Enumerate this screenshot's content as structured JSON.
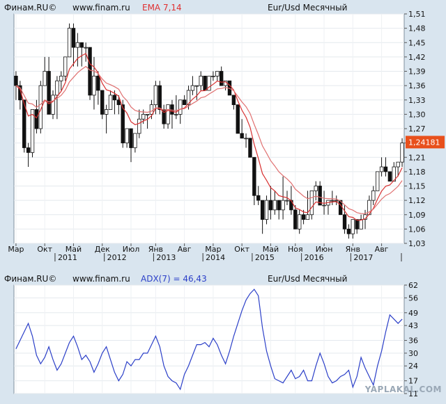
{
  "price_panel": {
    "source": "Финам.RU©",
    "site": "www.finam.ru",
    "indicator": "EMA 7,14",
    "indicator_color": "#e03030",
    "instrument": "Eur/Usd Месячный",
    "last_price": "1,24181",
    "last_price_color": "#e8501c",
    "y_ticks": [
      "1,51",
      "1,48",
      "1,45",
      "1,42",
      "1,39",
      "1,36",
      "1,33",
      "1,30",
      "1,27",
      "1,24",
      "1,21",
      "1,18",
      "1,15",
      "1,12",
      "1,09",
      "1,06",
      "1,03"
    ],
    "month_labels": [
      "Мар",
      "Окт",
      "Май",
      "Дек",
      "Июл",
      "Янв",
      "Авг",
      "Мар",
      "Окт",
      "Май",
      "Ноя",
      "Июн",
      "Янв",
      "Авг"
    ],
    "year_labels": [
      "2011",
      "2012",
      "2013",
      "2014",
      "2015",
      "2016",
      "2017"
    ]
  },
  "adx_panel": {
    "source": "Финам.RU©",
    "site": "www.finam.ru",
    "indicator": "ADX(7) = 46,43",
    "indicator_color": "#2b3fc8",
    "instrument": "Eur/Usd Месячный",
    "y_ticks": [
      "62",
      "56",
      "49",
      "43",
      "36",
      "30",
      "24",
      "17",
      "11"
    ]
  },
  "watermark": "YAPLAKAL.COM",
  "chart_data": [
    {
      "type": "candlestick",
      "title": "Eur/Usd Месячный",
      "ylim": [
        1.03,
        1.51
      ],
      "x_range": [
        "2010-03",
        "2017-12"
      ],
      "grid": true,
      "ohlc": [
        {
          "x": "2010-03",
          "o": 1.38,
          "h": 1.39,
          "l": 1.33,
          "c": 1.36
        },
        {
          "x": "2010-04",
          "o": 1.36,
          "h": 1.37,
          "l": 1.31,
          "c": 1.33
        },
        {
          "x": "2010-05",
          "o": 1.33,
          "h": 1.33,
          "l": 1.22,
          "c": 1.23
        },
        {
          "x": "2010-06",
          "o": 1.23,
          "h": 1.24,
          "l": 1.19,
          "c": 1.22
        },
        {
          "x": "2010-07",
          "o": 1.22,
          "h": 1.31,
          "l": 1.21,
          "c": 1.31
        },
        {
          "x": "2010-08",
          "o": 1.31,
          "h": 1.33,
          "l": 1.26,
          "c": 1.27
        },
        {
          "x": "2010-09",
          "o": 1.27,
          "h": 1.37,
          "l": 1.26,
          "c": 1.36
        },
        {
          "x": "2010-10",
          "o": 1.36,
          "h": 1.42,
          "l": 1.36,
          "c": 1.39
        },
        {
          "x": "2010-11",
          "o": 1.39,
          "h": 1.42,
          "l": 1.3,
          "c": 1.3
        },
        {
          "x": "2010-12",
          "o": 1.3,
          "h": 1.35,
          "l": 1.29,
          "c": 1.34
        },
        {
          "x": "2011-01",
          "o": 1.34,
          "h": 1.38,
          "l": 1.29,
          "c": 1.37
        },
        {
          "x": "2011-02",
          "o": 1.37,
          "h": 1.39,
          "l": 1.35,
          "c": 1.38
        },
        {
          "x": "2011-03",
          "o": 1.38,
          "h": 1.42,
          "l": 1.37,
          "c": 1.42
        },
        {
          "x": "2011-04",
          "o": 1.42,
          "h": 1.49,
          "l": 1.42,
          "c": 1.48
        },
        {
          "x": "2011-05",
          "o": 1.48,
          "h": 1.49,
          "l": 1.4,
          "c": 1.44
        },
        {
          "x": "2011-06",
          "o": 1.44,
          "h": 1.47,
          "l": 1.4,
          "c": 1.45
        },
        {
          "x": "2011-07",
          "o": 1.45,
          "h": 1.45,
          "l": 1.4,
          "c": 1.44
        },
        {
          "x": "2011-08",
          "o": 1.44,
          "h": 1.45,
          "l": 1.41,
          "c": 1.44
        },
        {
          "x": "2011-09",
          "o": 1.44,
          "h": 1.44,
          "l": 1.33,
          "c": 1.34
        },
        {
          "x": "2011-10",
          "o": 1.34,
          "h": 1.42,
          "l": 1.31,
          "c": 1.38
        },
        {
          "x": "2011-11",
          "o": 1.38,
          "h": 1.39,
          "l": 1.32,
          "c": 1.35
        },
        {
          "x": "2011-12",
          "o": 1.35,
          "h": 1.35,
          "l": 1.29,
          "c": 1.3
        },
        {
          "x": "2012-01",
          "o": 1.3,
          "h": 1.32,
          "l": 1.26,
          "c": 1.31
        },
        {
          "x": "2012-02",
          "o": 1.31,
          "h": 1.35,
          "l": 1.31,
          "c": 1.34
        },
        {
          "x": "2012-03",
          "o": 1.34,
          "h": 1.35,
          "l": 1.3,
          "c": 1.33
        },
        {
          "x": "2012-04",
          "o": 1.33,
          "h": 1.34,
          "l": 1.3,
          "c": 1.32
        },
        {
          "x": "2012-05",
          "o": 1.32,
          "h": 1.33,
          "l": 1.23,
          "c": 1.24
        },
        {
          "x": "2012-06",
          "o": 1.24,
          "h": 1.27,
          "l": 1.23,
          "c": 1.27
        },
        {
          "x": "2012-07",
          "o": 1.27,
          "h": 1.27,
          "l": 1.2,
          "c": 1.23
        },
        {
          "x": "2012-08",
          "o": 1.23,
          "h": 1.26,
          "l": 1.22,
          "c": 1.26
        },
        {
          "x": "2012-09",
          "o": 1.26,
          "h": 1.31,
          "l": 1.25,
          "c": 1.29
        },
        {
          "x": "2012-10",
          "o": 1.29,
          "h": 1.31,
          "l": 1.28,
          "c": 1.3
        },
        {
          "x": "2012-11",
          "o": 1.3,
          "h": 1.3,
          "l": 1.27,
          "c": 1.3
        },
        {
          "x": "2012-12",
          "o": 1.3,
          "h": 1.33,
          "l": 1.29,
          "c": 1.32
        },
        {
          "x": "2013-01",
          "o": 1.32,
          "h": 1.37,
          "l": 1.3,
          "c": 1.36
        },
        {
          "x": "2013-02",
          "o": 1.36,
          "h": 1.37,
          "l": 1.3,
          "c": 1.31
        },
        {
          "x": "2013-03",
          "o": 1.31,
          "h": 1.32,
          "l": 1.27,
          "c": 1.28
        },
        {
          "x": "2013-04",
          "o": 1.28,
          "h": 1.32,
          "l": 1.27,
          "c": 1.32
        },
        {
          "x": "2013-05",
          "o": 1.32,
          "h": 1.33,
          "l": 1.27,
          "c": 1.3
        },
        {
          "x": "2013-06",
          "o": 1.3,
          "h": 1.34,
          "l": 1.29,
          "c": 1.3
        },
        {
          "x": "2013-07",
          "o": 1.3,
          "h": 1.33,
          "l": 1.28,
          "c": 1.33
        },
        {
          "x": "2013-08",
          "o": 1.33,
          "h": 1.34,
          "l": 1.32,
          "c": 1.32
        },
        {
          "x": "2013-09",
          "o": 1.32,
          "h": 1.36,
          "l": 1.31,
          "c": 1.35
        },
        {
          "x": "2013-10",
          "o": 1.35,
          "h": 1.38,
          "l": 1.34,
          "c": 1.36
        },
        {
          "x": "2013-11",
          "o": 1.36,
          "h": 1.36,
          "l": 1.33,
          "c": 1.36
        },
        {
          "x": "2013-12",
          "o": 1.36,
          "h": 1.39,
          "l": 1.35,
          "c": 1.38
        },
        {
          "x": "2014-01",
          "o": 1.38,
          "h": 1.38,
          "l": 1.35,
          "c": 1.35
        },
        {
          "x": "2014-02",
          "o": 1.35,
          "h": 1.38,
          "l": 1.35,
          "c": 1.38
        },
        {
          "x": "2014-03",
          "o": 1.38,
          "h": 1.39,
          "l": 1.37,
          "c": 1.38
        },
        {
          "x": "2014-04",
          "o": 1.38,
          "h": 1.39,
          "l": 1.37,
          "c": 1.39
        },
        {
          "x": "2014-05",
          "o": 1.39,
          "h": 1.4,
          "l": 1.36,
          "c": 1.36
        },
        {
          "x": "2014-06",
          "o": 1.36,
          "h": 1.37,
          "l": 1.35,
          "c": 1.37
        },
        {
          "x": "2014-07",
          "o": 1.37,
          "h": 1.37,
          "l": 1.34,
          "c": 1.34
        },
        {
          "x": "2014-08",
          "o": 1.34,
          "h": 1.34,
          "l": 1.31,
          "c": 1.32
        },
        {
          "x": "2014-09",
          "o": 1.32,
          "h": 1.32,
          "l": 1.26,
          "c": 1.26
        },
        {
          "x": "2014-10",
          "o": 1.26,
          "h": 1.29,
          "l": 1.25,
          "c": 1.25
        },
        {
          "x": "2014-11",
          "o": 1.25,
          "h": 1.26,
          "l": 1.23,
          "c": 1.25
        },
        {
          "x": "2014-12",
          "o": 1.25,
          "h": 1.25,
          "l": 1.21,
          "c": 1.21
        },
        {
          "x": "2015-01",
          "o": 1.21,
          "h": 1.21,
          "l": 1.11,
          "c": 1.13
        },
        {
          "x": "2015-02",
          "o": 1.13,
          "h": 1.15,
          "l": 1.11,
          "c": 1.12
        },
        {
          "x": "2015-03",
          "o": 1.12,
          "h": 1.12,
          "l": 1.05,
          "c": 1.08
        },
        {
          "x": "2015-04",
          "o": 1.08,
          "h": 1.13,
          "l": 1.07,
          "c": 1.12
        },
        {
          "x": "2015-05",
          "o": 1.12,
          "h": 1.15,
          "l": 1.08,
          "c": 1.1
        },
        {
          "x": "2015-06",
          "o": 1.1,
          "h": 1.14,
          "l": 1.09,
          "c": 1.12
        },
        {
          "x": "2015-07",
          "o": 1.12,
          "h": 1.12,
          "l": 1.08,
          "c": 1.1
        },
        {
          "x": "2015-08",
          "o": 1.1,
          "h": 1.17,
          "l": 1.08,
          "c": 1.12
        },
        {
          "x": "2015-09",
          "o": 1.12,
          "h": 1.14,
          "l": 1.11,
          "c": 1.12
        },
        {
          "x": "2015-10",
          "o": 1.12,
          "h": 1.15,
          "l": 1.09,
          "c": 1.1
        },
        {
          "x": "2015-11",
          "o": 1.1,
          "h": 1.11,
          "l": 1.06,
          "c": 1.06
        },
        {
          "x": "2015-12",
          "o": 1.06,
          "h": 1.1,
          "l": 1.05,
          "c": 1.09
        },
        {
          "x": "2016-01",
          "o": 1.09,
          "h": 1.1,
          "l": 1.07,
          "c": 1.08
        },
        {
          "x": "2016-02",
          "o": 1.08,
          "h": 1.14,
          "l": 1.08,
          "c": 1.09
        },
        {
          "x": "2016-03",
          "o": 1.09,
          "h": 1.14,
          "l": 1.08,
          "c": 1.14
        },
        {
          "x": "2016-04",
          "o": 1.14,
          "h": 1.16,
          "l": 1.12,
          "c": 1.15
        },
        {
          "x": "2016-05",
          "o": 1.15,
          "h": 1.16,
          "l": 1.11,
          "c": 1.11
        },
        {
          "x": "2016-06",
          "o": 1.11,
          "h": 1.14,
          "l": 1.09,
          "c": 1.11
        },
        {
          "x": "2016-07",
          "o": 1.11,
          "h": 1.12,
          "l": 1.09,
          "c": 1.12
        },
        {
          "x": "2016-08",
          "o": 1.12,
          "h": 1.14,
          "l": 1.11,
          "c": 1.12
        },
        {
          "x": "2016-09",
          "o": 1.12,
          "h": 1.13,
          "l": 1.11,
          "c": 1.12
        },
        {
          "x": "2016-10",
          "o": 1.12,
          "h": 1.12,
          "l": 1.09,
          "c": 1.09
        },
        {
          "x": "2016-11",
          "o": 1.09,
          "h": 1.11,
          "l": 1.05,
          "c": 1.06
        },
        {
          "x": "2016-12",
          "o": 1.06,
          "h": 1.07,
          "l": 1.04,
          "c": 1.05
        },
        {
          "x": "2017-01",
          "o": 1.05,
          "h": 1.08,
          "l": 1.04,
          "c": 1.08
        },
        {
          "x": "2017-02",
          "o": 1.08,
          "h": 1.08,
          "l": 1.05,
          "c": 1.06
        },
        {
          "x": "2017-03",
          "o": 1.06,
          "h": 1.09,
          "l": 1.06,
          "c": 1.08
        },
        {
          "x": "2017-04",
          "o": 1.08,
          "h": 1.1,
          "l": 1.06,
          "c": 1.09
        },
        {
          "x": "2017-05",
          "o": 1.09,
          "h": 1.13,
          "l": 1.09,
          "c": 1.12
        },
        {
          "x": "2017-06",
          "o": 1.12,
          "h": 1.15,
          "l": 1.11,
          "c": 1.14
        },
        {
          "x": "2017-07",
          "o": 1.14,
          "h": 1.18,
          "l": 1.14,
          "c": 1.18
        },
        {
          "x": "2017-08",
          "o": 1.18,
          "h": 1.21,
          "l": 1.17,
          "c": 1.19
        },
        {
          "x": "2017-09",
          "o": 1.19,
          "h": 1.21,
          "l": 1.17,
          "c": 1.18
        },
        {
          "x": "2017-10",
          "o": 1.18,
          "h": 1.18,
          "l": 1.16,
          "c": 1.16
        },
        {
          "x": "2017-11",
          "o": 1.16,
          "h": 1.2,
          "l": 1.16,
          "c": 1.19
        },
        {
          "x": "2017-12",
          "o": 1.19,
          "h": 1.2,
          "l": 1.17,
          "c": 1.2
        },
        {
          "x": "2018-01",
          "o": 1.2,
          "h": 1.25,
          "l": 1.19,
          "c": 1.24
        }
      ],
      "series": [
        {
          "name": "EMA 7",
          "color": "#d83030",
          "values_from": "ohlc.close",
          "period": 7
        },
        {
          "name": "EMA 14",
          "color": "#e07070",
          "values_from": "ohlc.close",
          "period": 14
        }
      ]
    },
    {
      "type": "line",
      "title": "ADX(7) = 46,43",
      "ylim": [
        11,
        62
      ],
      "grid": true,
      "series": [
        {
          "name": "ADX(7)",
          "color": "#2b3fc8",
          "x": [
            "2010-03",
            "2010-04",
            "2010-05",
            "2010-06",
            "2010-07",
            "2010-08",
            "2010-09",
            "2010-10",
            "2010-11",
            "2010-12",
            "2011-01",
            "2011-02",
            "2011-03",
            "2011-04",
            "2011-05",
            "2011-06",
            "2011-07",
            "2011-08",
            "2011-09",
            "2011-10",
            "2011-11",
            "2011-12",
            "2012-01",
            "2012-02",
            "2012-03",
            "2012-04",
            "2012-05",
            "2012-06",
            "2012-07",
            "2012-08",
            "2012-09",
            "2012-10",
            "2012-11",
            "2012-12",
            "2013-01",
            "2013-02",
            "2013-03",
            "2013-04",
            "2013-05",
            "2013-06",
            "2013-07",
            "2013-08",
            "2013-09",
            "2013-10",
            "2013-11",
            "2013-12",
            "2014-01",
            "2014-02",
            "2014-03",
            "2014-04",
            "2014-05",
            "2014-06",
            "2014-07",
            "2014-08",
            "2014-09",
            "2014-10",
            "2014-11",
            "2014-12",
            "2015-01",
            "2015-02",
            "2015-03",
            "2015-04",
            "2015-05",
            "2015-06",
            "2015-07",
            "2015-08",
            "2015-09",
            "2015-10",
            "2015-11",
            "2015-12",
            "2016-01",
            "2016-02",
            "2016-03",
            "2016-04",
            "2016-05",
            "2016-06",
            "2016-07",
            "2016-08",
            "2016-09",
            "2016-10",
            "2016-11",
            "2016-12",
            "2017-01",
            "2017-02",
            "2017-03",
            "2017-04",
            "2017-05",
            "2017-06",
            "2017-07",
            "2017-08",
            "2017-09",
            "2017-10",
            "2017-11",
            "2017-12",
            "2018-01"
          ],
          "values": [
            32,
            36,
            40,
            44,
            38,
            29,
            25,
            28,
            33,
            27,
            22,
            25,
            30,
            35,
            38,
            33,
            27,
            29,
            26,
            21,
            25,
            30,
            33,
            27,
            21,
            17,
            20,
            26,
            24,
            27,
            27,
            30,
            30,
            34,
            38,
            33,
            24,
            19,
            17,
            16,
            13,
            20,
            24,
            29,
            34,
            34,
            35,
            33,
            37,
            34,
            29,
            25,
            31,
            38,
            44,
            50,
            55,
            58,
            60,
            57,
            42,
            31,
            24,
            18,
            17,
            16,
            19,
            22,
            18,
            19,
            22,
            17,
            17,
            24,
            30,
            25,
            19,
            16,
            17,
            19,
            20,
            22,
            14,
            19,
            28,
            23,
            19,
            15,
            24,
            31,
            40,
            48,
            46,
            44,
            46
          ]
        }
      ]
    }
  ]
}
